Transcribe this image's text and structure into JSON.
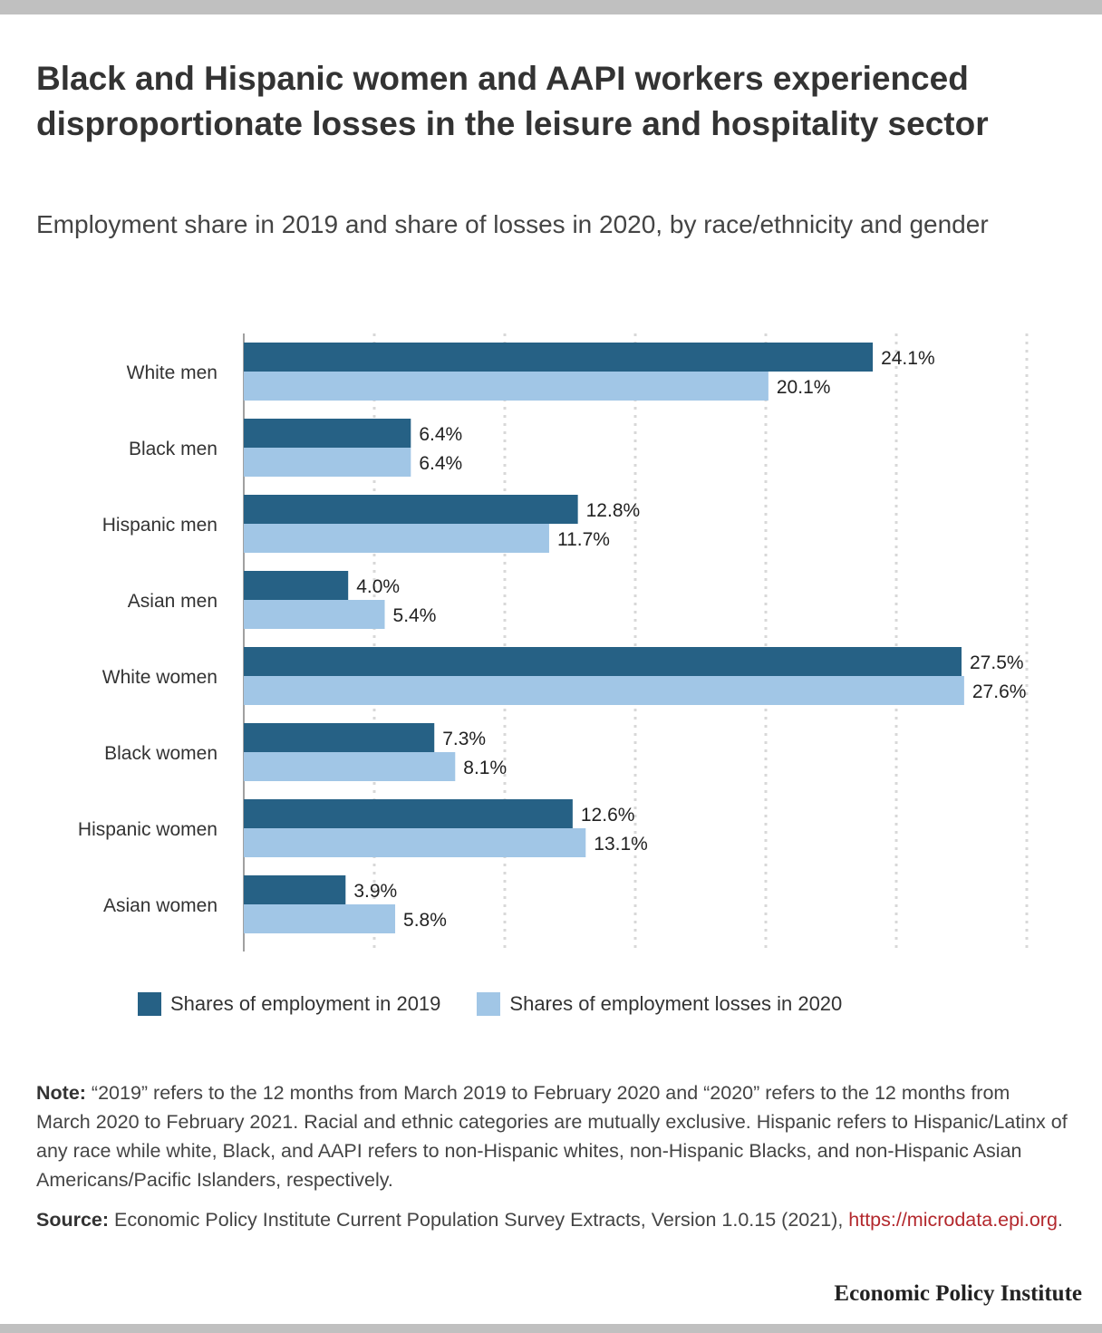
{
  "title": "Black and Hispanic women and AAPI workers experienced disproportionate losses in the leisure and hospitality sector",
  "subtitle": "Employment share in 2019 and share of losses in 2020, by race/ethnicity and gender",
  "chart_data": {
    "type": "bar",
    "orientation": "horizontal",
    "categories": [
      "White men",
      "Black men",
      "Hispanic men",
      "Asian men",
      "White women",
      "Black women",
      "Hispanic women",
      "Asian women"
    ],
    "series": [
      {
        "name": "Shares of employment in 2019",
        "color": "#266185",
        "values": [
          24.1,
          6.4,
          12.8,
          4.0,
          27.5,
          7.3,
          12.6,
          3.9
        ]
      },
      {
        "name": "Shares of employment losses in 2020",
        "color": "#a1c6e6",
        "values": [
          20.1,
          6.4,
          11.7,
          5.4,
          27.6,
          8.1,
          13.1,
          5.8
        ]
      }
    ],
    "value_suffix": "%",
    "xlim": [
      0,
      30
    ],
    "grid": true,
    "legend_position": "bottom"
  },
  "legend": {
    "items": [
      {
        "label": "Shares of employment in 2019",
        "color": "#266185"
      },
      {
        "label": "Shares of employment losses in 2020",
        "color": "#a1c6e6"
      }
    ]
  },
  "note": {
    "label": "Note:",
    "text": " “2019” refers to the 12 months from March 2019 to February 2020 and “2020” refers to the 12 months from March 2020 to February 2021. Racial and ethnic categories are mutually exclusive. Hispanic refers to Hispanic/Latinx of any race while white, Black, and AAPI refers to non-Hispanic whites, non-Hispanic Blacks, and non-Hispanic Asian Americans/Pacific Islanders, respectively."
  },
  "source": {
    "label": "Source:",
    "text": " Economic Policy Institute Current Population Survey Extracts, Version 1.0.15 (2021), ",
    "link": "https://microdata.epi.org",
    "after_link": "."
  },
  "publisher": "Economic Policy Institute"
}
